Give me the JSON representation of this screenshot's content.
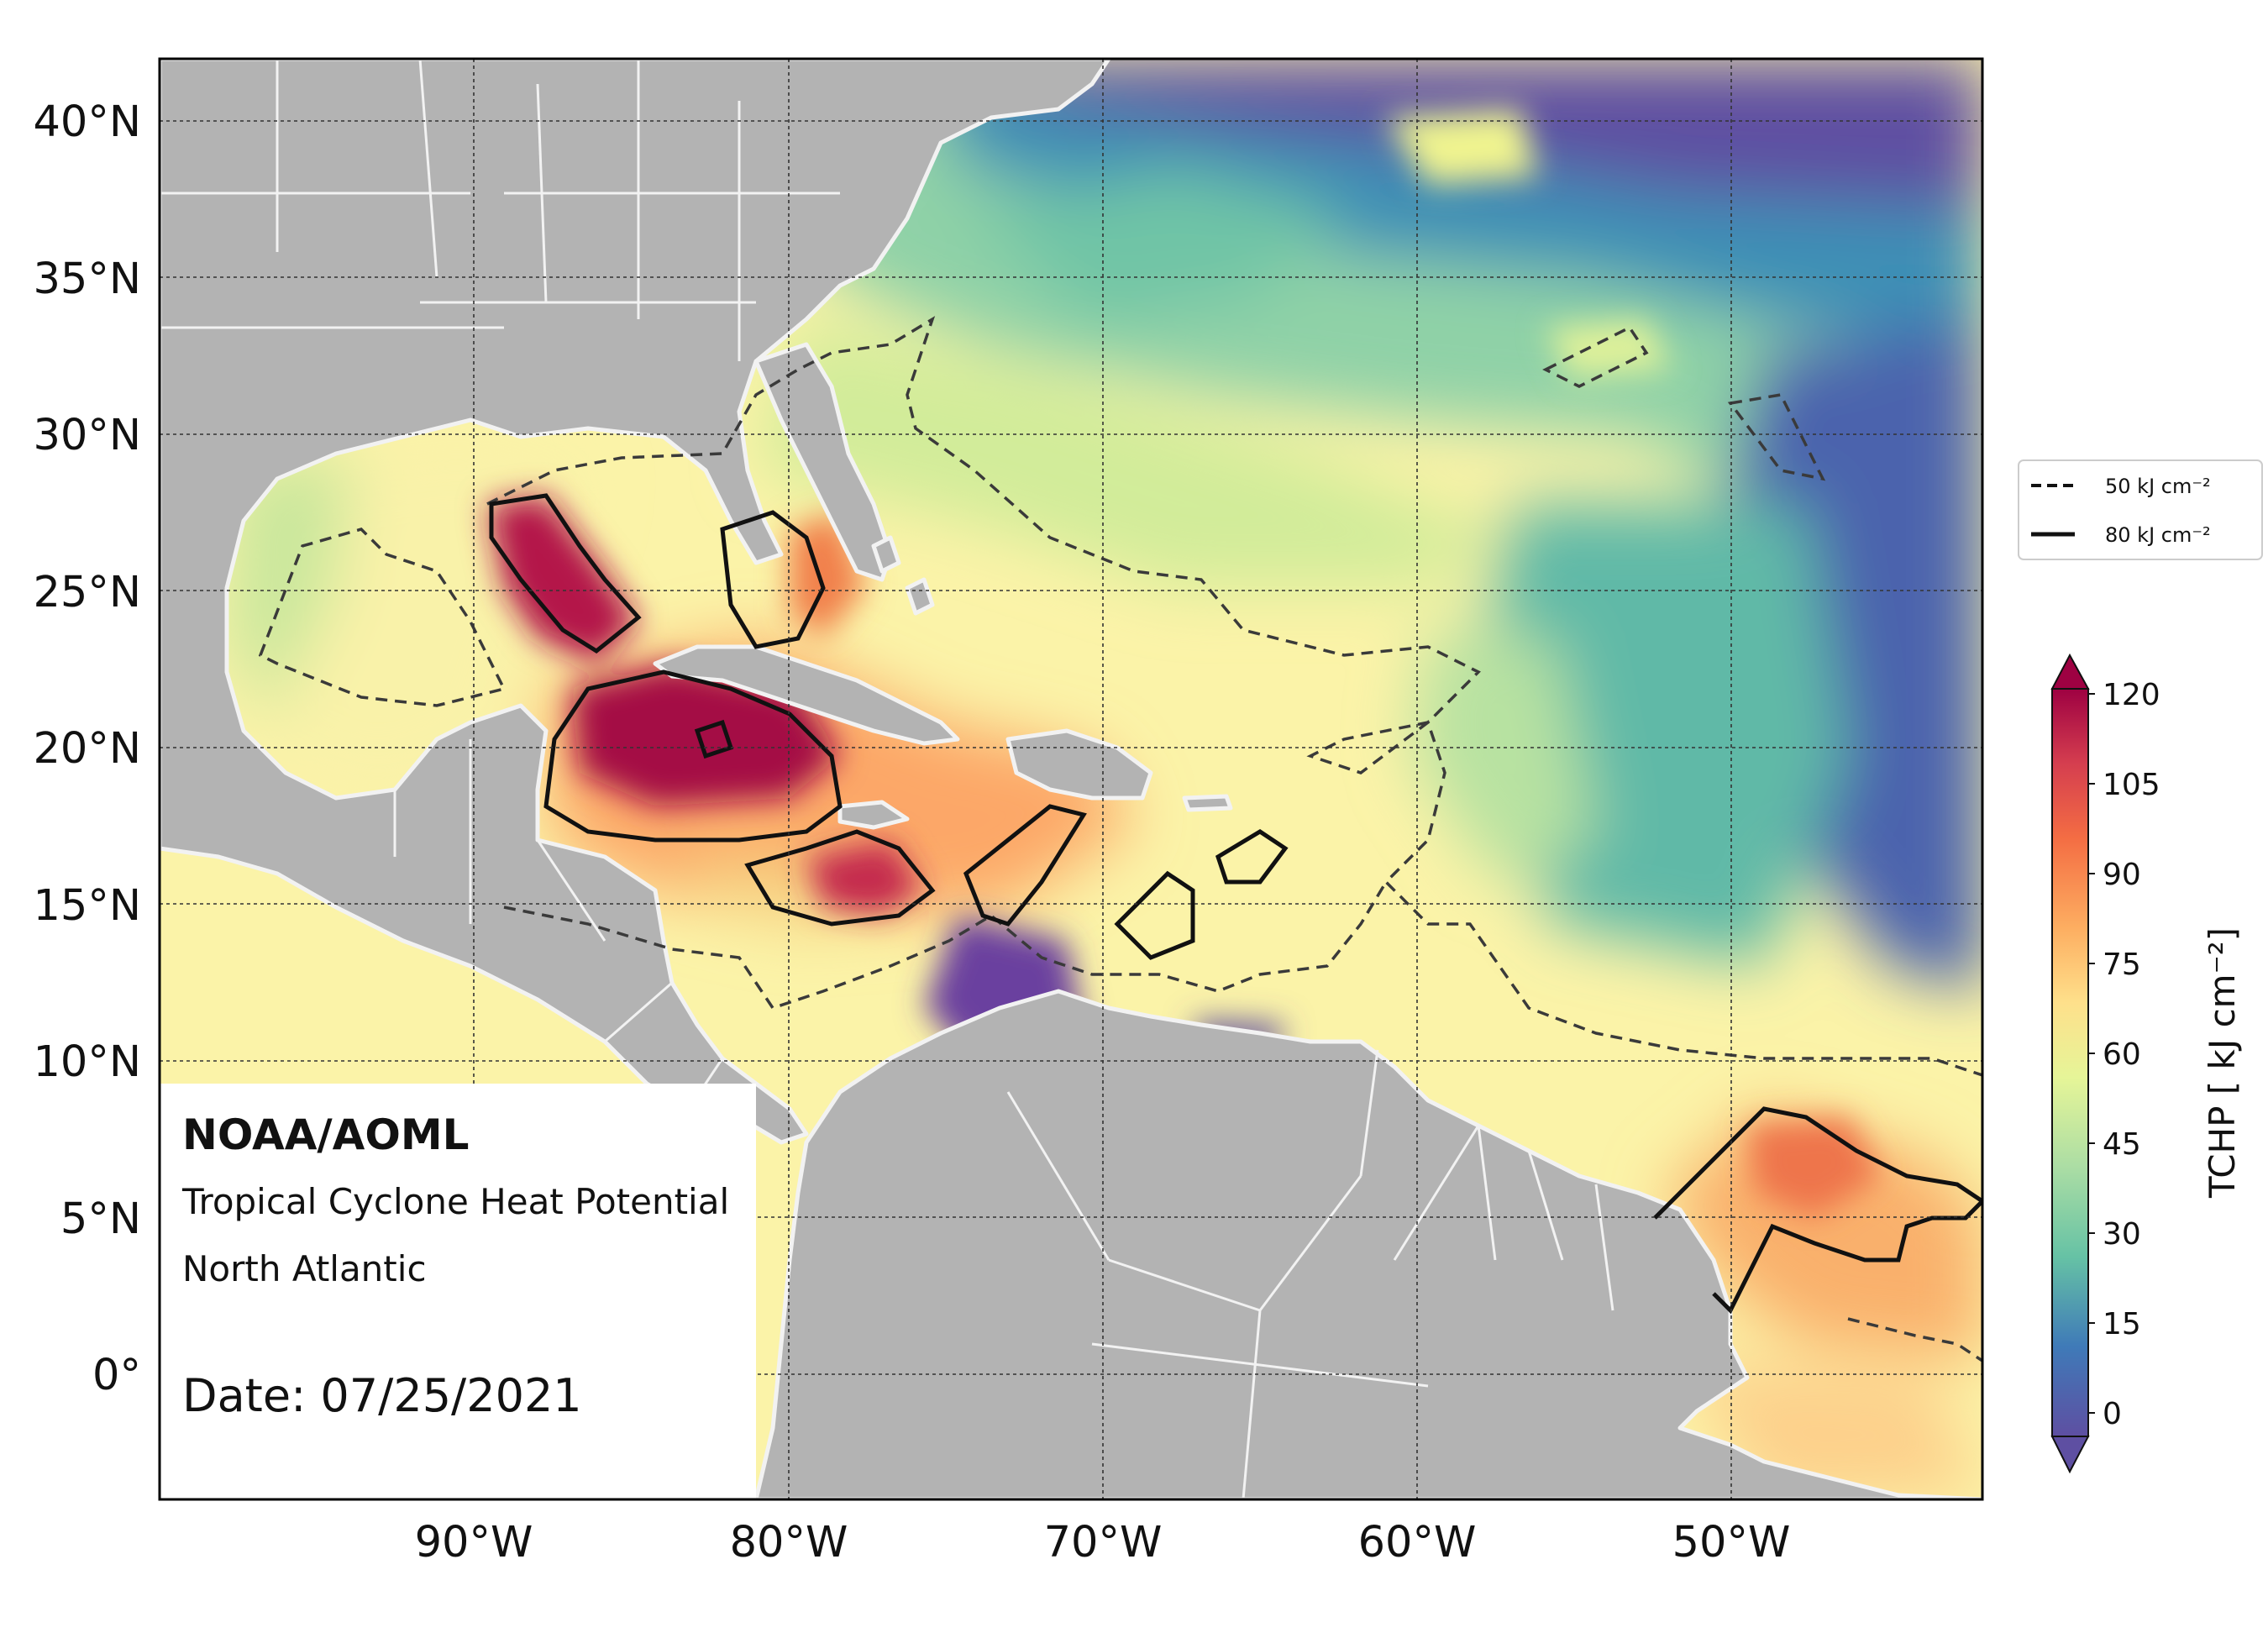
{
  "map": {
    "extent": {
      "lon_min": -100,
      "lon_max": -42,
      "lat_min": -4,
      "lat_max": 42
    },
    "lat_ticks": [
      {
        "value": 40,
        "label": "40°N"
      },
      {
        "value": 35,
        "label": "35°N"
      },
      {
        "value": 30,
        "label": "30°N"
      },
      {
        "value": 25,
        "label": "25°N"
      },
      {
        "value": 20,
        "label": "20°N"
      },
      {
        "value": 15,
        "label": "15°N"
      },
      {
        "value": 10,
        "label": "10°N"
      },
      {
        "value": 5,
        "label": "5°N"
      },
      {
        "value": 0,
        "label": "0°"
      }
    ],
    "lon_ticks": [
      {
        "value": -90,
        "label": "90°W"
      },
      {
        "value": -80,
        "label": "80°W"
      },
      {
        "value": -70,
        "label": "70°W"
      },
      {
        "value": -60,
        "label": "60°W"
      },
      {
        "value": -50,
        "label": "50°W"
      }
    ],
    "land_color": "#b3b3b3",
    "border_color": "#f2f2f2",
    "grid_color": "#333333"
  },
  "info": {
    "org": "NOAA/AOML",
    "product": "Tropical Cyclone Heat Potential",
    "region": "North Atlantic",
    "date": "Date: 07/25/2021"
  },
  "legend": {
    "entries": [
      {
        "label": "50 kJ cm⁻²",
        "style": "dashed"
      },
      {
        "label": "80 kJ cm⁻²",
        "style": "solid"
      }
    ]
  },
  "colorbar": {
    "label": "TCHP [ kJ cm⁻²]",
    "ticks": [
      "120",
      "105",
      "90",
      "75",
      "60",
      "45",
      "30",
      "15",
      "0"
    ],
    "min": -5,
    "max": 120,
    "palette": [
      "#5e4fa2",
      "#3f7ab8",
      "#3f96b7",
      "#66c2a5",
      "#99d5a4",
      "#c6e89e",
      "#e6f598",
      "#fbf8b0",
      "#fee08b",
      "#fdbf6f",
      "#f99355",
      "#ea5f47",
      "#c8304e",
      "#9e0142"
    ]
  }
}
